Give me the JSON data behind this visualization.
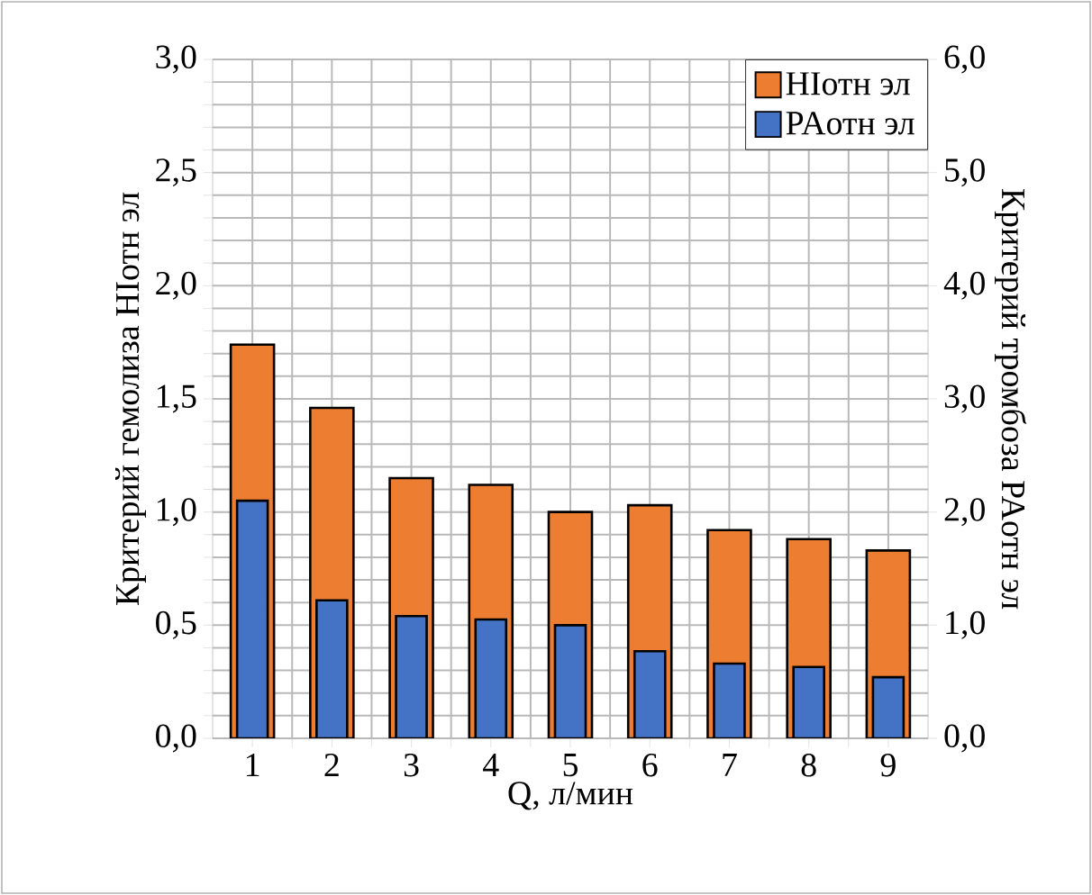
{
  "chart_data": {
    "type": "bar",
    "xlabel": "Q, л/мин",
    "ylabel": "Критерий гемолиза HIотн эл",
    "y2label": "Критерий тромбоза PAотн эл",
    "categories": [
      "1",
      "2",
      "3",
      "4",
      "5",
      "6",
      "7",
      "8",
      "9"
    ],
    "series": [
      {
        "name": "HIотн эл",
        "color": "#ed7d31",
        "values": [
          1.74,
          1.46,
          1.15,
          1.12,
          1.0,
          1.03,
          0.92,
          0.88,
          0.83
        ]
      },
      {
        "name": "PAотн эл",
        "color": "#4472c4",
        "axis": "y2",
        "values": [
          2.1,
          1.22,
          1.08,
          1.05,
          1.0,
          0.77,
          0.66,
          0.63,
          0.54
        ]
      }
    ],
    "ylim": [
      0,
      3
    ],
    "yticks": [
      {
        "value": 0,
        "label": "0,0"
      },
      {
        "value": 0.5,
        "label": "0,5"
      },
      {
        "value": 1,
        "label": "1,0"
      },
      {
        "value": 1.5,
        "label": "1,5"
      },
      {
        "value": 2,
        "label": "2,0"
      },
      {
        "value": 2.5,
        "label": "2,5"
      },
      {
        "value": 3,
        "label": "3,0"
      }
    ],
    "y2lim": [
      0,
      6
    ],
    "y2ticks": [
      {
        "value": 0,
        "label": "0,0"
      },
      {
        "value": 1,
        "label": "1,0"
      },
      {
        "value": 2,
        "label": "2,0"
      },
      {
        "value": 3,
        "label": "3,0"
      },
      {
        "value": 4,
        "label": "4,0"
      },
      {
        "value": 5,
        "label": "5,0"
      },
      {
        "value": 6,
        "label": "6,0"
      }
    ],
    "grid": true,
    "legend": "top right"
  }
}
